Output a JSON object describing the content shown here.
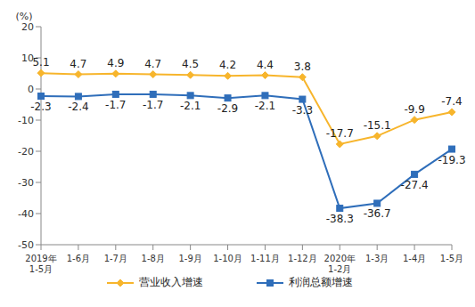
{
  "chart_data": {
    "type": "line",
    "y_label": "(%)",
    "categories": [
      "2019年\n1-5月",
      "1-6月",
      "1-7月",
      "1-8月",
      "1-9月",
      "1-10月",
      "1-11月",
      "1-12月",
      "2020年\n1-2月",
      "1-3月",
      "1-4月",
      "1-5月"
    ],
    "series": [
      {
        "name": "营业收入增速",
        "color": "#F7B52C",
        "marker": "diamond",
        "values": [
          5.1,
          4.7,
          4.9,
          4.7,
          4.5,
          4.2,
          4.4,
          3.8,
          -17.7,
          -15.1,
          -9.9,
          -7.4
        ]
      },
      {
        "name": "利润总额增速",
        "color": "#2F6EBA",
        "marker": "square",
        "values": [
          -2.3,
          -2.4,
          -1.7,
          -1.7,
          -2.1,
          -2.9,
          -2.1,
          -3.3,
          -38.3,
          -36.7,
          -27.4,
          -19.3
        ]
      }
    ],
    "ylim": [
      -50,
      20
    ],
    "yticks": [
      -50,
      -40,
      -30,
      -20,
      -10,
      0,
      10,
      20
    ],
    "grid": false,
    "data_labels": true,
    "legend": "bottom"
  }
}
